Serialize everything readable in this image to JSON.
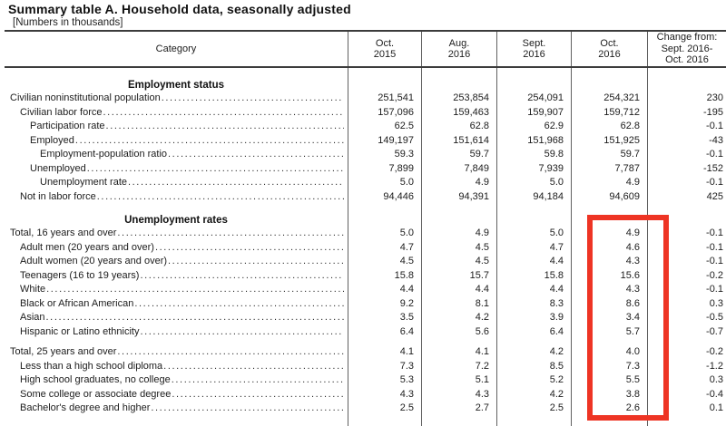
{
  "title": "Summary table A. Household data, seasonally adjusted",
  "subtitle": "[Numbers in thousands]",
  "table": {
    "category_header": "Category",
    "column_headers": [
      "Oct.\n2015",
      "Aug.\n2016",
      "Sept.\n2016",
      "Oct.\n2016",
      "Change from:\nSept. 2016-\nOct. 2016"
    ],
    "sections": [
      {
        "header": "Employment status",
        "rows": [
          {
            "label": "Civilian noninstitutional population",
            "indent": 0,
            "values": [
              "251,541",
              "253,854",
              "254,091",
              "254,321",
              "230"
            ]
          },
          {
            "label": "Civilian labor force",
            "indent": 1,
            "values": [
              "157,096",
              "159,463",
              "159,907",
              "159,712",
              "-195"
            ]
          },
          {
            "label": "Participation rate",
            "indent": 2,
            "values": [
              "62.5",
              "62.8",
              "62.9",
              "62.8",
              "-0.1"
            ]
          },
          {
            "label": "Employed",
            "indent": 2,
            "values": [
              "149,197",
              "151,614",
              "151,968",
              "151,925",
              "-43"
            ]
          },
          {
            "label": "Employment-population ratio",
            "indent": 3,
            "values": [
              "59.3",
              "59.7",
              "59.8",
              "59.7",
              "-0.1"
            ]
          },
          {
            "label": "Unemployed",
            "indent": 2,
            "values": [
              "7,899",
              "7,849",
              "7,939",
              "7,787",
              "-152"
            ]
          },
          {
            "label": "Unemployment rate",
            "indent": 3,
            "values": [
              "5.0",
              "4.9",
              "5.0",
              "4.9",
              "-0.1"
            ]
          },
          {
            "label": "Not in labor force",
            "indent": 1,
            "values": [
              "94,446",
              "94,391",
              "94,184",
              "94,609",
              "425"
            ]
          }
        ]
      },
      {
        "header": "Unemployment rates",
        "rows": [
          {
            "label": "Total, 16 years and over",
            "indent": 0,
            "values": [
              "5.0",
              "4.9",
              "5.0",
              "4.9",
              "-0.1"
            ]
          },
          {
            "label": "Adult men (20 years and over)",
            "indent": 1,
            "values": [
              "4.7",
              "4.5",
              "4.7",
              "4.6",
              "-0.1"
            ]
          },
          {
            "label": "Adult women (20 years and over)",
            "indent": 1,
            "values": [
              "4.5",
              "4.5",
              "4.4",
              "4.3",
              "-0.1"
            ]
          },
          {
            "label": "Teenagers (16 to 19 years)",
            "indent": 1,
            "values": [
              "15.8",
              "15.7",
              "15.8",
              "15.6",
              "-0.2"
            ]
          },
          {
            "label": "White",
            "indent": 1,
            "values": [
              "4.4",
              "4.4",
              "4.4",
              "4.3",
              "-0.1"
            ]
          },
          {
            "label": "Black or African American",
            "indent": 1,
            "values": [
              "9.2",
              "8.1",
              "8.3",
              "8.6",
              "0.3"
            ]
          },
          {
            "label": "Asian",
            "indent": 1,
            "values": [
              "3.5",
              "4.2",
              "3.9",
              "3.4",
              "-0.5"
            ]
          },
          {
            "label": "Hispanic or Latino ethnicity",
            "indent": 1,
            "values": [
              "6.4",
              "5.6",
              "6.4",
              "5.7",
              "-0.7"
            ]
          },
          {
            "label": "Total, 25 years and over",
            "indent": 0,
            "gap_above": true,
            "values": [
              "4.1",
              "4.1",
              "4.2",
              "4.0",
              "-0.2"
            ]
          },
          {
            "label": "Less than a high school diploma",
            "indent": 1,
            "values": [
              "7.3",
              "7.2",
              "8.5",
              "7.3",
              "-1.2"
            ]
          },
          {
            "label": "High school graduates, no college",
            "indent": 1,
            "values": [
              "5.3",
              "5.1",
              "5.2",
              "5.5",
              "0.3"
            ]
          },
          {
            "label": "Some college or associate degree",
            "indent": 1,
            "values": [
              "4.3",
              "4.3",
              "4.2",
              "3.8",
              "-0.4"
            ]
          },
          {
            "label": "Bachelor's degree and higher",
            "indent": 1,
            "values": [
              "2.5",
              "2.7",
              "2.5",
              "2.6",
              "0.1"
            ]
          }
        ]
      }
    ]
  },
  "highlight": {
    "highlighted_column": "Oct. 2016",
    "color": "#ee3424"
  }
}
